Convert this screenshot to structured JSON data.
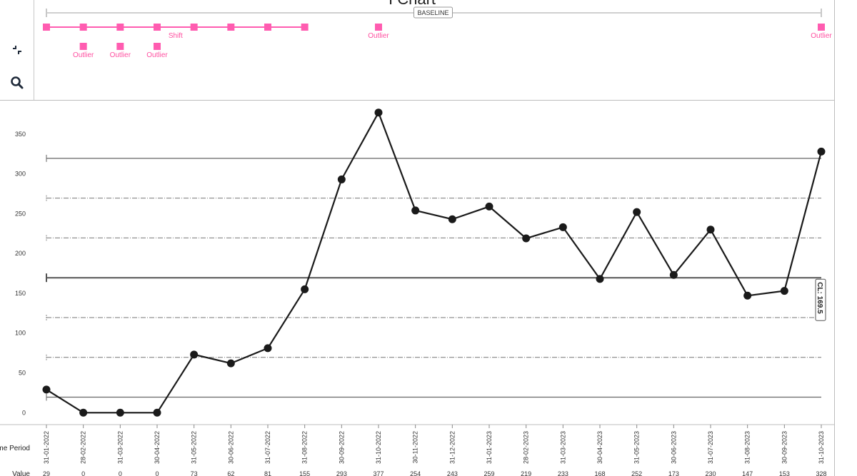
{
  "header": {
    "title": "I Chart"
  },
  "toolbar": {
    "collapse_icon": "collapse-icon",
    "search_icon": "search-icon"
  },
  "baseline": {
    "label": "BASELINE"
  },
  "table": {
    "time_header": "Time Period",
    "value_header": "Value"
  },
  "rules": [
    {
      "label": "Shift",
      "row": 0,
      "from": 0,
      "to": 7,
      "label_at": 3.5
    },
    {
      "label": "Outlier",
      "row": 1,
      "from": 1,
      "to": 1
    },
    {
      "label": "Outlier",
      "row": 1,
      "from": 2,
      "to": 2
    },
    {
      "label": "Outlier",
      "row": 1,
      "from": 3,
      "to": 3
    },
    {
      "label": "Outlier",
      "row": 0,
      "from": 9,
      "to": 9
    },
    {
      "label": "Outlier",
      "row": 0,
      "from": 21,
      "to": 21
    }
  ],
  "colors": {
    "line": "#1a1a1a",
    "rule": "#ff5cb0",
    "grid": "#555555"
  },
  "chart_data": {
    "type": "line",
    "title": "I Chart",
    "xlabel": "Time Period",
    "ylabel": "Value",
    "x": [
      "31-01-2022",
      "28-02-2022",
      "31-03-2022",
      "30-04-2022",
      "31-05-2022",
      "30-06-2022",
      "31-07-2022",
      "31-08-2022",
      "30-09-2022",
      "31-10-2022",
      "30-11-2022",
      "31-12-2022",
      "31-01-2023",
      "28-02-2023",
      "31-03-2023",
      "30-04-2023",
      "31-05-2023",
      "30-06-2023",
      "31-07-2023",
      "31-08-2023",
      "30-09-2023",
      "31-10-2023"
    ],
    "series": [
      {
        "values": [
          29,
          0,
          0,
          0,
          73,
          62,
          81,
          155,
          293,
          377,
          254,
          243,
          259,
          219,
          233,
          168,
          252,
          173,
          230,
          147,
          153,
          328
        ]
      }
    ],
    "y_ticks": [
      0,
      50,
      100,
      150,
      200,
      250,
      300,
      350
    ],
    "ylim": [
      -15,
      392
    ],
    "center_line": 169.5,
    "center_label": "CL: 169.5",
    "ucl": 319.5,
    "lcl": 19.5,
    "sigma_lines": [
      69.5,
      119.5,
      219.5,
      269.5
    ],
    "grid": false,
    "legend": "none"
  }
}
